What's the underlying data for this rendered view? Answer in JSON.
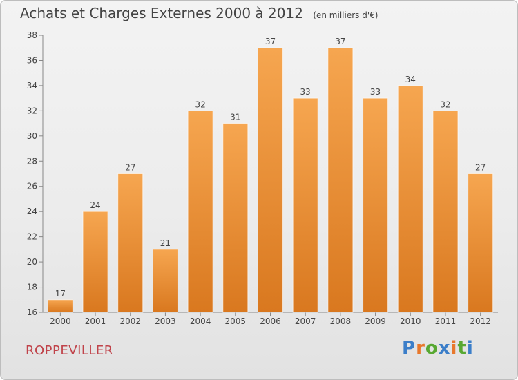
{
  "chart_data": {
    "type": "bar",
    "title": "Achats et Charges Externes 2000 à 2012",
    "subtitle": "(en milliers d'€)",
    "categories": [
      "2000",
      "2001",
      "2002",
      "2003",
      "2004",
      "2005",
      "2006",
      "2007",
      "2008",
      "2009",
      "2010",
      "2011",
      "2012"
    ],
    "values": [
      17,
      24,
      27,
      21,
      32,
      31,
      37,
      33,
      37,
      33,
      34,
      32,
      27
    ],
    "ylim": [
      16,
      38
    ],
    "yticks": [
      16,
      18,
      20,
      22,
      24,
      26,
      28,
      30,
      32,
      34,
      36,
      38
    ],
    "grid": false,
    "bar_color": "#f29a3c",
    "bar_color_dark": "#d97a20"
  },
  "footer": {
    "commune": "ROPPEVILLER",
    "brand": "Proxiti",
    "brand_colors": [
      "#3b7ec9",
      "#e8782c",
      "#58a832",
      "#3b7ec9",
      "#e8782c",
      "#58a832",
      "#3b7ec9"
    ]
  }
}
